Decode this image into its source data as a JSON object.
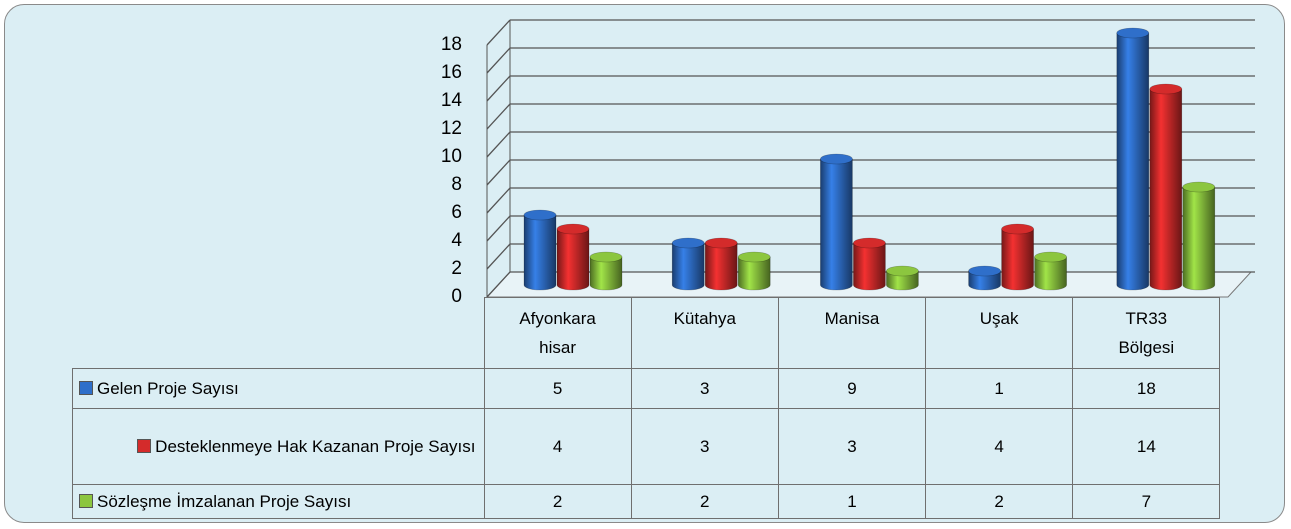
{
  "chart_data": {
    "type": "bar3d",
    "categories": [
      "Afyonkarahisar",
      "Kütahya",
      "Manisa",
      "Uşak",
      "TR33 Bölgesi"
    ],
    "series": [
      {
        "name": "Gelen Proje Sayısı",
        "color": "#2f6fca",
        "values": [
          5,
          3,
          9,
          1,
          18
        ]
      },
      {
        "name": "Desteklenmeye Hak Kazanan Proje Sayısı",
        "color": "#d42b2b",
        "values": [
          4,
          3,
          3,
          4,
          14
        ]
      },
      {
        "name": "Sözleşme İmzalanan Proje Sayısı",
        "color": "#8cc63f",
        "values": [
          2,
          2,
          1,
          2,
          7
        ]
      }
    ],
    "ylim": [
      0,
      18
    ],
    "yticks": [
      0,
      2,
      4,
      6,
      8,
      10,
      12,
      14,
      16,
      18
    ],
    "grid": true
  }
}
